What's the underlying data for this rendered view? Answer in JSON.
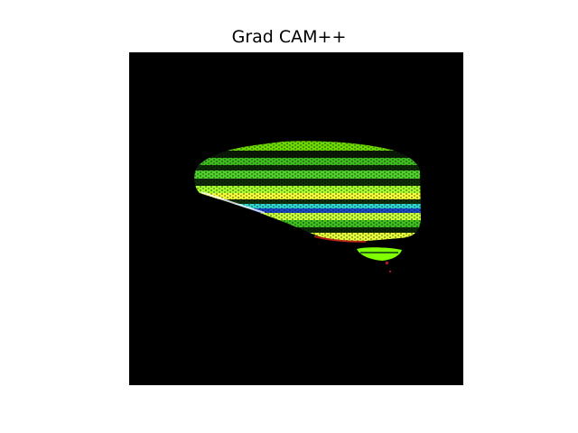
{
  "figure": {
    "title": "Grad CAM++"
  },
  "image": {
    "background_color": "#000000",
    "palette": {
      "green": "#3fbf1f",
      "bright_green": "#7fff00",
      "yellow": "#f2ff3a",
      "dark_green": "#1a5a10",
      "cyan": "#2fd7d0",
      "blue": "#1a46c8",
      "red": "#b21818",
      "white": "#ffffff"
    }
  }
}
